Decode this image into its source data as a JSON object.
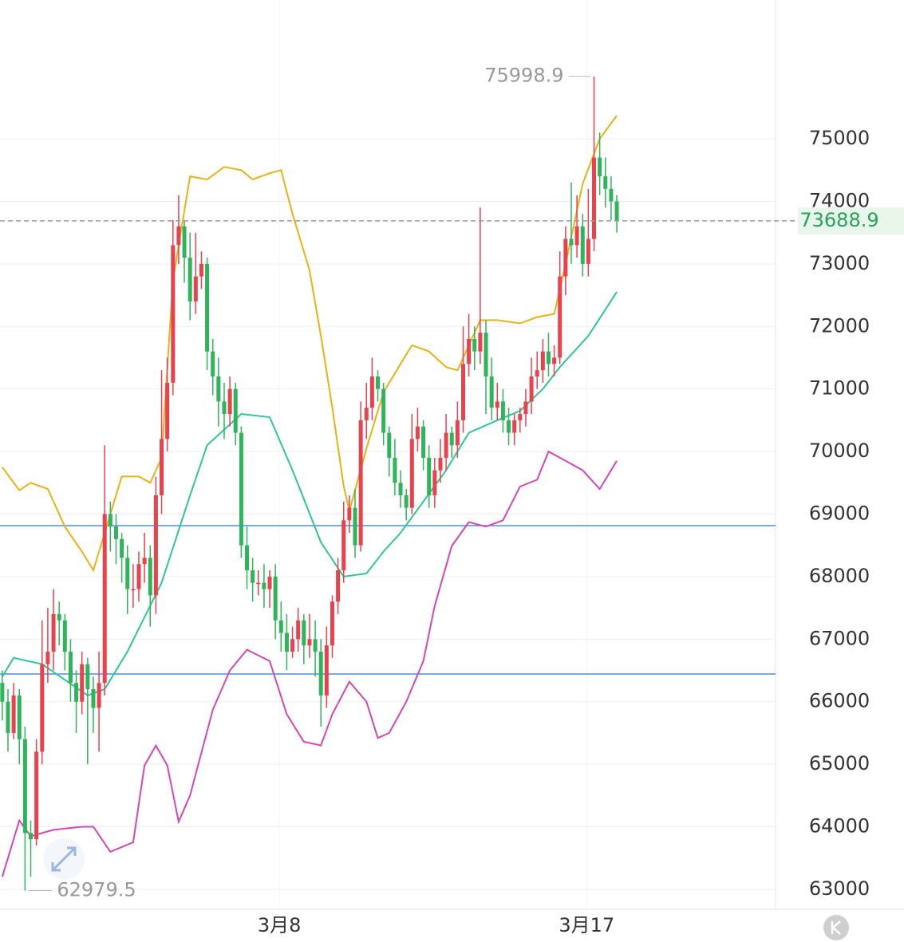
{
  "chart_data": {
    "type": "candlestick",
    "up_color": "#e8424f",
    "down_color": "#2fb35b",
    "xlim": [
      -0.4,
      135.9
    ],
    "xticks": [
      {
        "value": 48.7,
        "label": "3月8"
      },
      {
        "value": 102.7,
        "label": "3月17"
      }
    ],
    "ylim": [
      62680,
      77220
    ],
    "yticks": [
      63000,
      64000,
      65000,
      66000,
      67000,
      68000,
      69000,
      70000,
      71000,
      72000,
      73000,
      74000,
      75000
    ],
    "grid": true,
    "open": [
      66300,
      66000,
      65500,
      66100,
      65400,
      63900,
      63800,
      65200,
      66600,
      66800,
      67400,
      67300,
      66800,
      66300,
      66000,
      66600,
      66200,
      65900,
      66300,
      69000,
      68800,
      68600,
      68300,
      67800,
      67800,
      68200,
      68300,
      67700,
      69300,
      70200,
      71100,
      73300,
      73600,
      73100,
      72400,
      72800,
      73000,
      71600,
      71200,
      70800,
      70600,
      71000,
      70300,
      68500,
      68100,
      67900,
      67900,
      67800,
      68000,
      67300,
      67100,
      66800,
      67000,
      67300,
      66900,
      67000,
      66800,
      66100,
      66900,
      67600,
      68100,
      68900,
      69100,
      68500,
      70500,
      70700,
      71200,
      71000,
      70300,
      69900,
      69500,
      69300,
      69100,
      70200,
      70400,
      69900,
      69300,
      69700,
      69900,
      70300,
      70100,
      70500,
      71400,
      71800,
      71600,
      71900,
      71200,
      70700,
      70800,
      70500,
      70300,
      70500,
      70600,
      70800,
      71200,
      71300,
      71600,
      71400,
      71500,
      72800,
      73400,
      73300,
      73600,
      73000,
      73400,
      74700,
      74400,
      74200,
      74000
    ],
    "high": [
      66500,
      66200,
      66300,
      66200,
      65600,
      64100,
      65400,
      67300,
      67500,
      67800,
      67600,
      67400,
      67000,
      66500,
      66800,
      66700,
      66400,
      66800,
      70100,
      69200,
      69000,
      68700,
      68500,
      68200,
      68400,
      68700,
      68500,
      69600,
      71300,
      71500,
      73700,
      74100,
      73700,
      73500,
      73500,
      73200,
      73100,
      71800,
      71500,
      71100,
      71200,
      71100,
      70400,
      68800,
      68300,
      68100,
      68200,
      68100,
      68200,
      67600,
      67400,
      67200,
      67500,
      67400,
      67400,
      67300,
      67000,
      67200,
      67700,
      68300,
      69200,
      69300,
      69400,
      70800,
      71100,
      71500,
      71300,
      71100,
      70400,
      70200,
      69700,
      69400,
      70600,
      70700,
      70500,
      70100,
      69900,
      70200,
      70600,
      70400,
      70800,
      72000,
      72200,
      72000,
      73900,
      72100,
      71500,
      71100,
      71000,
      70700,
      70600,
      70700,
      71000,
      71500,
      71600,
      71800,
      71900,
      71700,
      73200,
      73600,
      74300,
      74100,
      73800,
      74200,
      75998.9,
      75100,
      74700,
      74400,
      74100
    ],
    "low": [
      65700,
      65200,
      65400,
      65000,
      62979.5,
      63200,
      63700,
      65000,
      66300,
      66500,
      66900,
      66500,
      66000,
      65500,
      65800,
      65000,
      65500,
      65200,
      66100,
      68400,
      68200,
      67900,
      67400,
      67500,
      67600,
      67900,
      67200,
      67400,
      69000,
      70000,
      70900,
      73000,
      72700,
      72100,
      72200,
      72600,
      71300,
      70900,
      70400,
      70200,
      70400,
      70100,
      68300,
      67800,
      67600,
      67700,
      67500,
      67500,
      67000,
      66800,
      66500,
      66700,
      66800,
      66600,
      66700,
      66400,
      65600,
      65900,
      66700,
      67400,
      67900,
      68700,
      68300,
      68400,
      70200,
      70500,
      70800,
      70100,
      69600,
      69300,
      69100,
      68900,
      69000,
      70000,
      69700,
      69100,
      69100,
      69500,
      69700,
      69900,
      69900,
      70300,
      71200,
      71300,
      71400,
      70600,
      70500,
      70500,
      70300,
      70100,
      70100,
      70300,
      70400,
      70600,
      71000,
      71100,
      71200,
      71200,
      71400,
      72500,
      73000,
      73100,
      72800,
      72800,
      73200,
      74100,
      73900,
      73700,
      73500
    ],
    "close": [
      66000,
      65500,
      66100,
      65400,
      63900,
      63800,
      65200,
      66600,
      66800,
      67400,
      67300,
      66800,
      66300,
      66000,
      66600,
      66200,
      65900,
      66300,
      69000,
      68800,
      68600,
      68300,
      67800,
      67800,
      68200,
      68300,
      67700,
      69300,
      70200,
      71100,
      73300,
      73600,
      73100,
      72400,
      72800,
      73000,
      71600,
      71200,
      70800,
      70600,
      71000,
      70300,
      68500,
      68100,
      67900,
      67900,
      67800,
      68000,
      67300,
      67100,
      66800,
      67000,
      67300,
      66900,
      67000,
      66800,
      66100,
      66900,
      67600,
      68100,
      68900,
      69100,
      68500,
      70500,
      70700,
      71200,
      71000,
      70300,
      69900,
      69500,
      69300,
      69100,
      70200,
      70400,
      69900,
      69300,
      69700,
      69900,
      70300,
      70100,
      70500,
      71400,
      71800,
      71600,
      71900,
      71200,
      70700,
      70800,
      70500,
      70300,
      70500,
      70600,
      70800,
      71200,
      71300,
      71600,
      71400,
      71500,
      72800,
      73400,
      73300,
      73600,
      73000,
      73400,
      74700,
      74400,
      74200,
      74000,
      73688.9
    ],
    "lines": [
      {
        "color": "#e9b215",
        "x": [
          0,
          3,
          5,
          8,
          11,
          14,
          16,
          21,
          24,
          26,
          28,
          30,
          33,
          36,
          39,
          42,
          44,
          47,
          49,
          51,
          54,
          56,
          58,
          60,
          61,
          64,
          67,
          70,
          72,
          75,
          78,
          80,
          84,
          87,
          91,
          94,
          97,
          99,
          102,
          105,
          108
        ],
        "values": [
          69750,
          69380,
          69500,
          69400,
          68800,
          68400,
          68100,
          69600,
          69600,
          69500,
          69900,
          72750,
          74400,
          74350,
          74550,
          74500,
          74350,
          74450,
          74500,
          73800,
          72900,
          71850,
          70700,
          69450,
          69050,
          70050,
          70950,
          71400,
          71700,
          71600,
          71350,
          71300,
          72100,
          72100,
          72050,
          72150,
          72200,
          73000,
          74280,
          75000,
          75370
        ]
      },
      {
        "color": "#2ec79a",
        "x": [
          0,
          2,
          7,
          11,
          15,
          18,
          22,
          28,
          33,
          36,
          42,
          47,
          51,
          56,
          60,
          64,
          67,
          70,
          74,
          78,
          82,
          87,
          91,
          95,
          98,
          103,
          108
        ],
        "values": [
          66400,
          66700,
          66600,
          66350,
          66100,
          66200,
          66800,
          67900,
          69300,
          70100,
          70600,
          70550,
          69700,
          68550,
          68000,
          68050,
          68400,
          68700,
          69200,
          69700,
          70300,
          70500,
          70650,
          71000,
          71350,
          71850,
          72550
        ]
      },
      {
        "color": "#d447b4",
        "x": [
          0,
          3,
          5,
          9,
          14,
          16,
          19,
          23,
          25,
          27,
          29,
          31,
          33,
          37,
          40,
          43,
          47,
          50,
          53,
          56,
          58,
          61,
          64,
          66,
          68,
          71,
          74,
          76,
          79,
          82,
          85,
          88,
          91,
          94,
          96,
          99,
          102,
          105,
          108
        ],
        "values": [
          63200,
          64100,
          63850,
          63950,
          64000,
          64000,
          63600,
          63750,
          64980,
          65300,
          64980,
          64080,
          64500,
          65870,
          66500,
          66830,
          66650,
          65800,
          65360,
          65300,
          65800,
          66320,
          66000,
          65420,
          65500,
          66000,
          66650,
          67530,
          68490,
          68870,
          68800,
          68900,
          69440,
          69550,
          70000,
          69850,
          69700,
          69400,
          69850
        ]
      }
    ],
    "hlines": [
      68815,
      66443
    ],
    "hline_color": "#4a8fe0"
  }
}
